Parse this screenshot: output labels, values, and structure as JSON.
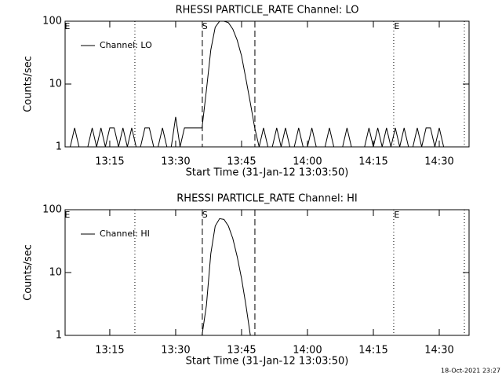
{
  "chart_data": [
    {
      "type": "line",
      "title": "RHESSI PARTICLE_RATE Channel: LO",
      "xlabel": "Start Time (31-Jan-12 13:03:50)",
      "ylabel": "Counts/sec",
      "log_y": true,
      "ylim": [
        1,
        100
      ],
      "yticks": [
        1,
        10,
        100
      ],
      "xlim": [
        "13:04:50",
        "14:36:47"
      ],
      "xticks": [
        "13:15",
        "13:30",
        "13:45",
        "14:00",
        "14:15",
        "14:30"
      ],
      "x": [
        "13:05",
        "13:06",
        "13:07",
        "13:08",
        "13:09",
        "13:10",
        "13:11",
        "13:12",
        "13:13",
        "13:14",
        "13:15",
        "13:16",
        "13:17",
        "13:18",
        "13:19",
        "13:20",
        "13:21",
        "13:22",
        "13:23",
        "13:24",
        "13:25",
        "13:26",
        "13:27",
        "13:28",
        "13:29",
        "13:30",
        "13:31",
        "13:32",
        "13:33",
        "13:34",
        "13:35",
        "13:36",
        "13:37",
        "13:38",
        "13:39",
        "13:40",
        "13:41",
        "13:42",
        "13:43",
        "13:44",
        "13:45",
        "13:46",
        "13:47",
        "13:48",
        "13:49",
        "13:50",
        "13:51",
        "13:52",
        "13:53",
        "13:54",
        "13:55",
        "13:56",
        "13:57",
        "13:58",
        "13:59",
        "14:00",
        "14:01",
        "14:02",
        "14:03",
        "14:04",
        "14:05",
        "14:06",
        "14:07",
        "14:08",
        "14:09",
        "14:10",
        "14:11",
        "14:12",
        "14:13",
        "14:14",
        "14:15",
        "14:16",
        "14:17",
        "14:18",
        "14:19",
        "14:20",
        "14:21",
        "14:22",
        "14:23",
        "14:24",
        "14:25",
        "14:26",
        "14:27",
        "14:28",
        "14:29",
        "14:30",
        "14:31",
        "14:32",
        "14:33",
        "14:34",
        "14:35",
        "14:36"
      ],
      "series": [
        {
          "name": "Channel: LO",
          "color": "#000000",
          "values": [
            1,
            1,
            2,
            1,
            1,
            1,
            2,
            1,
            2,
            1,
            2,
            2,
            1,
            2,
            1,
            2,
            1,
            1,
            2,
            2,
            1,
            1,
            2,
            1,
            1,
            3,
            1,
            2,
            2,
            2,
            2,
            2,
            8,
            35,
            80,
            100,
            100,
            95,
            75,
            50,
            28,
            12,
            5,
            2,
            1,
            2,
            1,
            1,
            2,
            1,
            2,
            1,
            1,
            2,
            1,
            1,
            2,
            1,
            1,
            1,
            2,
            1,
            1,
            1,
            2,
            1,
            1,
            1,
            1,
            2,
            1,
            2,
            1,
            2,
            1,
            2,
            1,
            2,
            1,
            1,
            2,
            1,
            2,
            2,
            1,
            2,
            1,
            1,
            1,
            1,
            1,
            1
          ]
        }
      ],
      "markers": [
        {
          "x": "13:20:43",
          "style": "dotted"
        },
        {
          "x": "13:36:04",
          "style": "dashed"
        },
        {
          "x": "13:48:02",
          "style": "dashed"
        },
        {
          "x": "14:19:38",
          "style": "dotted"
        },
        {
          "x": "14:35:43",
          "style": "dotted"
        }
      ],
      "flags": [
        {
          "x": "13:05:20",
          "label": "E"
        },
        {
          "x": "13:36:40",
          "label": "S"
        },
        {
          "x": "14:20:20",
          "label": "E"
        }
      ]
    },
    {
      "type": "line",
      "title": "RHESSI PARTICLE_RATE Channel: HI",
      "xlabel": "Start Time (31-Jan-12 13:03:50)",
      "ylabel": "Counts/sec",
      "log_y": true,
      "ylim": [
        1,
        100
      ],
      "yticks": [
        1,
        10,
        100
      ],
      "xlim": [
        "13:04:50",
        "14:36:47"
      ],
      "xticks": [
        "13:15",
        "13:30",
        "13:45",
        "14:00",
        "14:15",
        "14:30"
      ],
      "x": [
        "13:05",
        "13:06",
        "13:07",
        "13:08",
        "13:09",
        "13:10",
        "13:11",
        "13:12",
        "13:13",
        "13:14",
        "13:15",
        "13:16",
        "13:17",
        "13:18",
        "13:19",
        "13:20",
        "13:21",
        "13:22",
        "13:23",
        "13:24",
        "13:25",
        "13:26",
        "13:27",
        "13:28",
        "13:29",
        "13:30",
        "13:31",
        "13:32",
        "13:33",
        "13:34",
        "13:35",
        "13:36",
        "13:37",
        "13:38",
        "13:39",
        "13:40",
        "13:41",
        "13:42",
        "13:43",
        "13:44",
        "13:45",
        "13:46",
        "13:47",
        "13:48",
        "13:49",
        "13:50",
        "13:51",
        "13:52",
        "13:53",
        "13:54",
        "13:55",
        "13:56",
        "13:57",
        "13:58",
        "13:59",
        "14:00",
        "14:01",
        "14:02",
        "14:03",
        "14:04",
        "14:05",
        "14:06",
        "14:07",
        "14:08",
        "14:09",
        "14:10",
        "14:11",
        "14:12",
        "14:13",
        "14:14",
        "14:15",
        "14:16",
        "14:17",
        "14:18",
        "14:19",
        "14:20",
        "14:21",
        "14:22",
        "14:23",
        "14:24",
        "14:25",
        "14:26",
        "14:27",
        "14:28",
        "14:29",
        "14:30",
        "14:31",
        "14:32",
        "14:33",
        "14:34",
        "14:35",
        "14:36"
      ],
      "series": [
        {
          "name": "Channel: HI",
          "color": "#000000",
          "values": [
            1,
            1,
            1,
            1,
            1,
            1,
            1,
            1,
            1,
            1,
            1,
            1,
            1,
            1,
            1,
            1,
            1,
            1,
            1,
            1,
            1,
            1,
            1,
            1,
            1,
            1,
            1,
            1,
            1,
            1,
            1,
            1,
            3,
            20,
            55,
            72,
            70,
            55,
            35,
            18,
            8,
            3,
            1,
            1,
            1,
            1,
            1,
            1,
            1,
            1,
            1,
            1,
            1,
            1,
            1,
            1,
            1,
            1,
            1,
            1,
            1,
            1,
            1,
            1,
            1,
            1,
            1,
            1,
            1,
            1,
            1,
            1,
            1,
            1,
            1,
            1,
            1,
            1,
            1,
            1,
            1,
            1,
            1,
            1,
            1,
            1,
            1,
            1,
            1,
            1,
            1,
            1
          ]
        }
      ],
      "markers": [
        {
          "x": "13:20:43",
          "style": "dotted"
        },
        {
          "x": "13:36:04",
          "style": "dashed"
        },
        {
          "x": "13:48:02",
          "style": "dashed"
        },
        {
          "x": "14:19:38",
          "style": "dotted"
        },
        {
          "x": "14:35:43",
          "style": "dotted"
        }
      ],
      "flags": [
        {
          "x": "13:05:20",
          "label": "E"
        },
        {
          "x": "13:36:40",
          "label": "S"
        },
        {
          "x": "14:20:20",
          "label": "E"
        }
      ]
    }
  ],
  "footer": "18-Oct-2021 23:27"
}
